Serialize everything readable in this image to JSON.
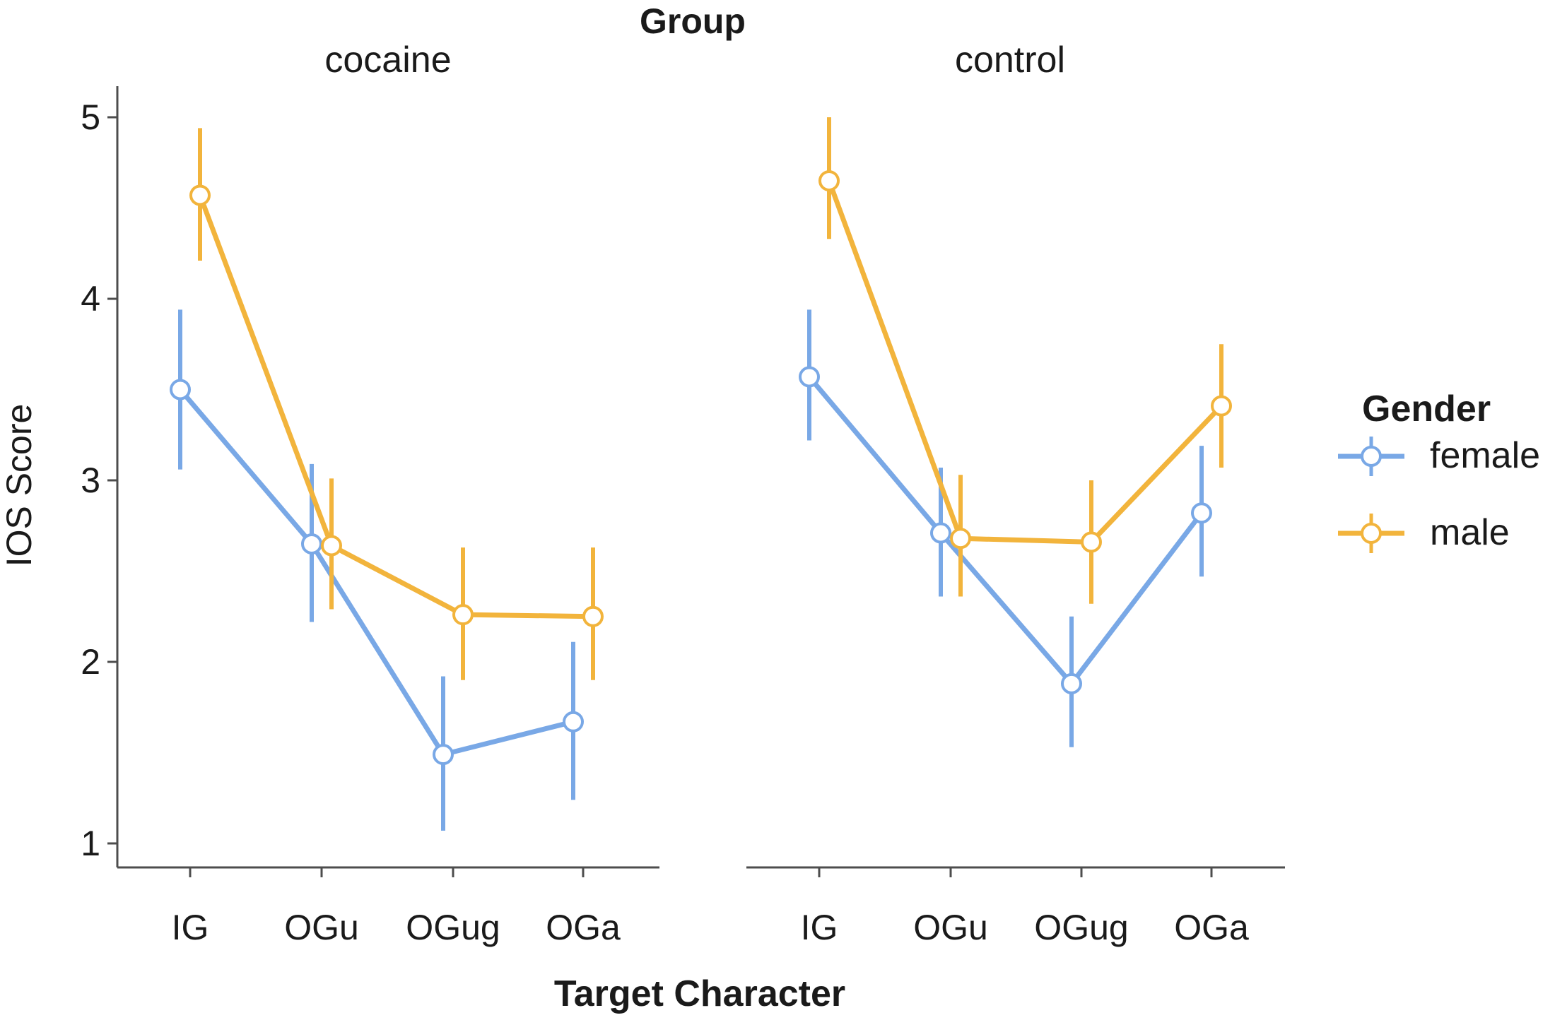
{
  "chart_data": {
    "type": "line",
    "facet_title": "Group",
    "facets": [
      "cocaine",
      "control"
    ],
    "categories": [
      "IG",
      "OGu",
      "OGug",
      "OGa"
    ],
    "xlabel": "Target Character",
    "ylabel": "IOS Score",
    "ylim": [
      1,
      5
    ],
    "yticks": [
      "1",
      "2",
      "3",
      "4",
      "5"
    ],
    "legend_title": "Gender",
    "series": [
      {
        "name": "female",
        "color": "#79A8E6",
        "panels": {
          "cocaine": {
            "values": [
              3.5,
              2.65,
              1.49,
              1.67
            ],
            "lower": [
              3.06,
              2.22,
              1.07,
              1.24
            ],
            "upper": [
              3.94,
              3.09,
              1.92,
              2.11
            ]
          },
          "control": {
            "values": [
              3.57,
              2.71,
              1.88,
              2.82
            ],
            "lower": [
              3.22,
              2.36,
              1.53,
              2.47
            ],
            "upper": [
              3.94,
              3.07,
              2.25,
              3.19
            ]
          }
        }
      },
      {
        "name": "male",
        "color": "#F2B43C",
        "panels": {
          "cocaine": {
            "values": [
              4.57,
              2.64,
              2.26,
              2.25
            ],
            "lower": [
              4.21,
              2.29,
              1.9,
              1.9
            ],
            "upper": [
              4.94,
              3.01,
              2.63,
              2.63
            ]
          },
          "control": {
            "values": [
              4.65,
              2.68,
              2.66,
              3.41
            ],
            "lower": [
              4.33,
              2.36,
              2.32,
              3.07
            ],
            "upper": [
              5.0,
              3.03,
              3.0,
              3.75
            ]
          }
        }
      }
    ]
  }
}
